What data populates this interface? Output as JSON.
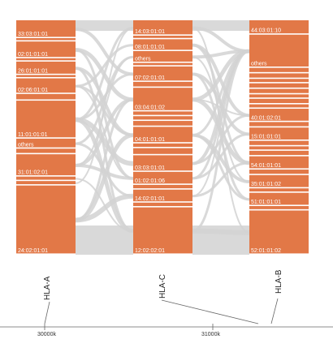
{
  "axes": [
    {
      "name": "HLA-A",
      "blocks": [
        {
          "label": "33:03:01:01",
          "h": 16
        },
        {
          "label": "",
          "h": 3
        },
        {
          "label": "02:01:01:01",
          "h": 15
        },
        {
          "label": "",
          "h": 3
        },
        {
          "label": "26:01:01:01",
          "h": 12
        },
        {
          "label": "",
          "h": 3
        },
        {
          "label": "02:06:01:01",
          "h": 14
        },
        {
          "label": "",
          "h": 6
        },
        {
          "label": "11:01:01:01",
          "h": 34
        },
        {
          "label": "others",
          "h": 9
        },
        {
          "label": "",
          "h": 5
        },
        {
          "label": "31:01:02:01",
          "h": 20
        },
        {
          "label": "",
          "h": 4
        },
        {
          "label": "",
          "h": 4
        },
        {
          "label": "24:02:01:01",
          "h": 62
        }
      ]
    },
    {
      "name": "HLA-C",
      "blocks": [
        {
          "label": "14:03:01:01",
          "h": 13
        },
        {
          "label": "",
          "h": 3
        },
        {
          "label": "08:01:01:01",
          "h": 10
        },
        {
          "label": "others",
          "h": 10
        },
        {
          "label": "",
          "h": 3
        },
        {
          "label": "07:02:01:01",
          "h": 13
        },
        {
          "label": "",
          "h": 5
        },
        {
          "label": "03:04:01:02",
          "h": 20
        },
        {
          "label": "",
          "h": 4
        },
        {
          "label": "",
          "h": 4
        },
        {
          "label": "",
          "h": 5
        },
        {
          "label": "04:01:01:01",
          "h": 14
        },
        {
          "label": "",
          "h": 4
        },
        {
          "label": "",
          "h": 6
        },
        {
          "label": "03:03:01:01",
          "h": 14
        },
        {
          "label": "01:02:01:06",
          "h": 11
        },
        {
          "label": "",
          "h": 4
        },
        {
          "label": "14:02:01:01",
          "h": 11
        },
        {
          "label": "",
          "h": 4
        },
        {
          "label": "12:02:02:01",
          "h": 40
        }
      ]
    },
    {
      "name": "HLA-B",
      "blocks": [
        {
          "label": "44:03:01:10",
          "h": 13
        },
        {
          "label": "others",
          "h": 30
        },
        {
          "label": "",
          "h": 5
        },
        {
          "label": "",
          "h": 5
        },
        {
          "label": "",
          "h": 4
        },
        {
          "label": "",
          "h": 5
        },
        {
          "label": "",
          "h": 5
        },
        {
          "label": "",
          "h": 4
        },
        {
          "label": "",
          "h": 5
        },
        {
          "label": "",
          "h": 4
        },
        {
          "label": "40:01:02:01",
          "h": 12
        },
        {
          "label": "",
          "h": 5
        },
        {
          "label": "15:01:01:01",
          "h": 12
        },
        {
          "label": "",
          "h": 5
        },
        {
          "label": "",
          "h": 4
        },
        {
          "label": "",
          "h": 5
        },
        {
          "label": "54:01:01:01",
          "h": 12
        },
        {
          "label": "",
          "h": 5
        },
        {
          "label": "35:01:01:02",
          "h": 12
        },
        {
          "label": "",
          "h": 4
        },
        {
          "label": "51:01:01:01",
          "h": 12
        },
        {
          "label": "",
          "h": 4
        },
        {
          "label": "52:01:01:02",
          "h": 40
        }
      ]
    }
  ],
  "genome": {
    "tick_labels": [
      "30000k",
      "31000k"
    ]
  },
  "colors": {
    "block": "#e27847",
    "ribbon": "#d2d2d2",
    "axis_line": "#666666"
  }
}
